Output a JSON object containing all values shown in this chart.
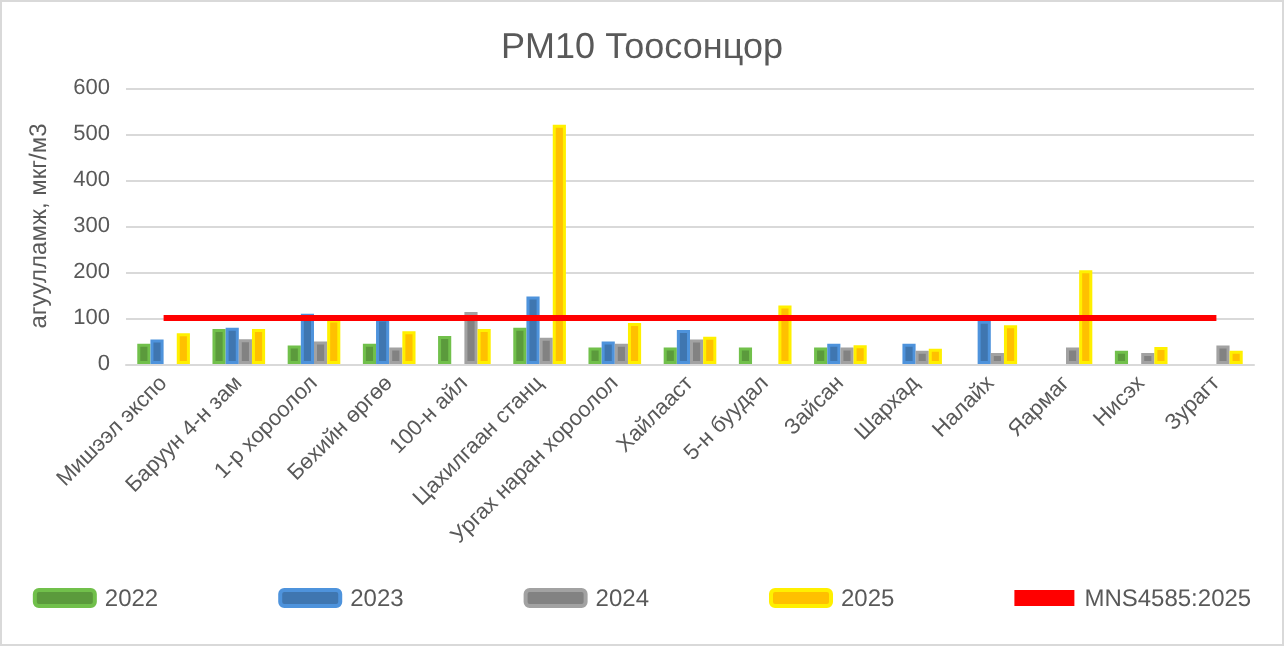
{
  "chart_data": {
    "type": "bar",
    "title": "PM10 Тоосонцор",
    "ylabel": "агуулламж, мкг/м3",
    "categories": [
      "Мишээл экспо",
      "Баруун 4-н зам",
      "1-р хороолол",
      "Бөхийн өргөө",
      "100-н айл",
      "Цахилгаан станц",
      "Ургах наран хороолол",
      "Хайлааст",
      "5-н буудал",
      "Зайсан",
      "Шархад",
      "Налайх",
      "Яармаг",
      "Нисэх",
      "Зурагт"
    ],
    "series": [
      {
        "name": "2022",
        "color": "#5b9a3c",
        "values": [
          44,
          76,
          40,
          44,
          61,
          79,
          36,
          36,
          36,
          36,
          null,
          null,
          null,
          29,
          null
        ]
      },
      {
        "name": "2023",
        "color": "#3f76b0",
        "values": [
          53,
          79,
          109,
          99,
          null,
          147,
          49,
          74,
          null,
          44,
          44,
          94,
          null,
          null,
          null
        ]
      },
      {
        "name": "2024",
        "color": "#828282",
        "values": [
          null,
          54,
          49,
          36,
          113,
          57,
          44,
          53,
          null,
          36,
          29,
          24,
          36,
          24,
          40
        ]
      },
      {
        "name": "2025",
        "color": "#ffc000",
        "values": [
          67,
          76,
          97,
          71,
          76,
          520,
          89,
          59,
          127,
          41,
          33,
          84,
          204,
          37,
          29
        ]
      },
      {
        "name": "MNS4585:2025",
        "type": "line",
        "color": "#ff0000",
        "values": [
          100,
          100,
          100,
          100,
          100,
          100,
          100,
          100,
          100,
          100,
          100,
          100,
          100,
          100,
          100
        ]
      }
    ],
    "ylim": [
      0,
      600
    ],
    "yticks": [
      0,
      100,
      200,
      300,
      400,
      500,
      600
    ],
    "grid": "y",
    "legend": "bottom",
    "marker": "none"
  }
}
